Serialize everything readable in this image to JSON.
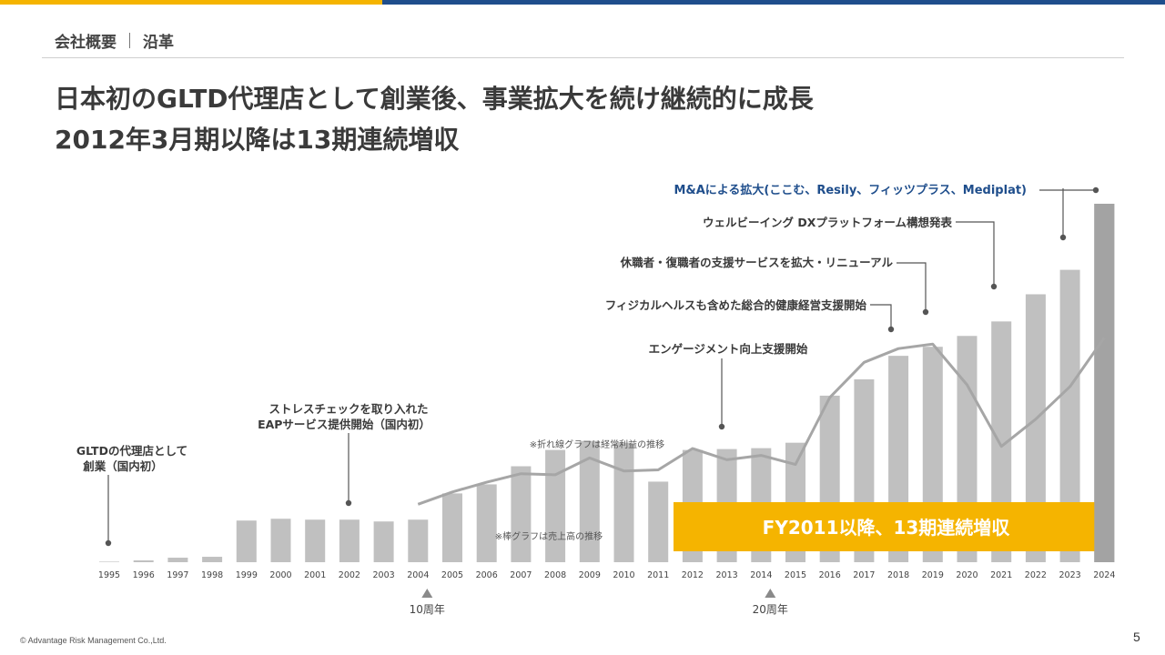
{
  "header": {
    "section": "会社概要",
    "subsection": "沿革",
    "title_line1": "日本初のGLTD代理店として創業後、事業拡大を続け継続的に成長",
    "title_line2": "2012年3月期以降は13期連続増収"
  },
  "colors": {
    "bar": "#c0c0c0",
    "bar_last": "#a3a3a3",
    "line": "#a6a6a6",
    "banner": "#f5b400",
    "top_bar_yellow": "#f5b400",
    "top_bar_blue": "#1f4e8c",
    "ma_text": "#1f4e8c",
    "annotation_text": "#3a3a3a"
  },
  "chart_data": {
    "type": "bar",
    "categories": [
      "1995",
      "1996",
      "1997",
      "1998",
      "1999",
      "2000",
      "2001",
      "2002",
      "2003",
      "2004",
      "2005",
      "2006",
      "2007",
      "2008",
      "2009",
      "2010",
      "2011",
      "2012",
      "2013",
      "2014",
      "2015",
      "2016",
      "2017",
      "2018",
      "2019",
      "2020",
      "2021",
      "2022",
      "2023",
      "2024"
    ],
    "series": [
      {
        "type": "bar",
        "values": [
          0.3,
          1,
          2.5,
          3,
          23,
          24,
          23.5,
          23.5,
          22.5,
          23.5,
          38,
          43,
          53,
          62,
          67,
          66,
          44.5,
          62,
          62.5,
          63,
          66,
          92,
          101,
          114,
          119,
          125,
          133,
          148,
          161.5,
          198
        ]
      },
      {
        "type": "line",
        "values": [
          null,
          null,
          null,
          null,
          null,
          null,
          null,
          null,
          null,
          32,
          38.8,
          44.2,
          48.9,
          48.3,
          57.6,
          50.4,
          51,
          62.8,
          56.6,
          59,
          54,
          91,
          110.4,
          118,
          120.5,
          98,
          64,
          79,
          97,
          124
        ]
      }
    ],
    "ylim": [
      0,
      200
    ],
    "bar_note": "※棒グラフは売上高の推移",
    "line_note": "※折れ線グラフは経常利益の推移",
    "banner": "FY2011以降、13期連続増収",
    "milestones": [
      {
        "label": "10周年",
        "year": "2004"
      },
      {
        "label": "20周年",
        "year": "2014"
      }
    ],
    "annotations": [
      {
        "year": "1995",
        "lines": [
          "GLTDの代理店として",
          "創業（国内初）"
        ]
      },
      {
        "year": "2002",
        "lines": [
          "ストレスチェックを取り入れた",
          "EAPサービス提供開始（国内初）"
        ]
      },
      {
        "year": "2013",
        "lines": [
          "エンゲージメント向上支援開始"
        ]
      },
      {
        "year": "2018",
        "lines": [
          "フィジカルヘルスも含めた総合的健康経営支援開始"
        ]
      },
      {
        "year": "2019",
        "lines": [
          "休職者・復職者の支援サービスを拡大・リニューアル"
        ]
      },
      {
        "year": "2021",
        "lines": [
          "ウェルビーイング DXプラットフォーム構想発表"
        ]
      },
      {
        "year": "2023",
        "lines": [
          "M&Aによる拡大(ここむ、Resily、フィッツプラス、Mediplat)"
        ]
      }
    ]
  },
  "footer": {
    "copyright": "© Advantage Risk Management Co.,Ltd.",
    "page": "5"
  }
}
